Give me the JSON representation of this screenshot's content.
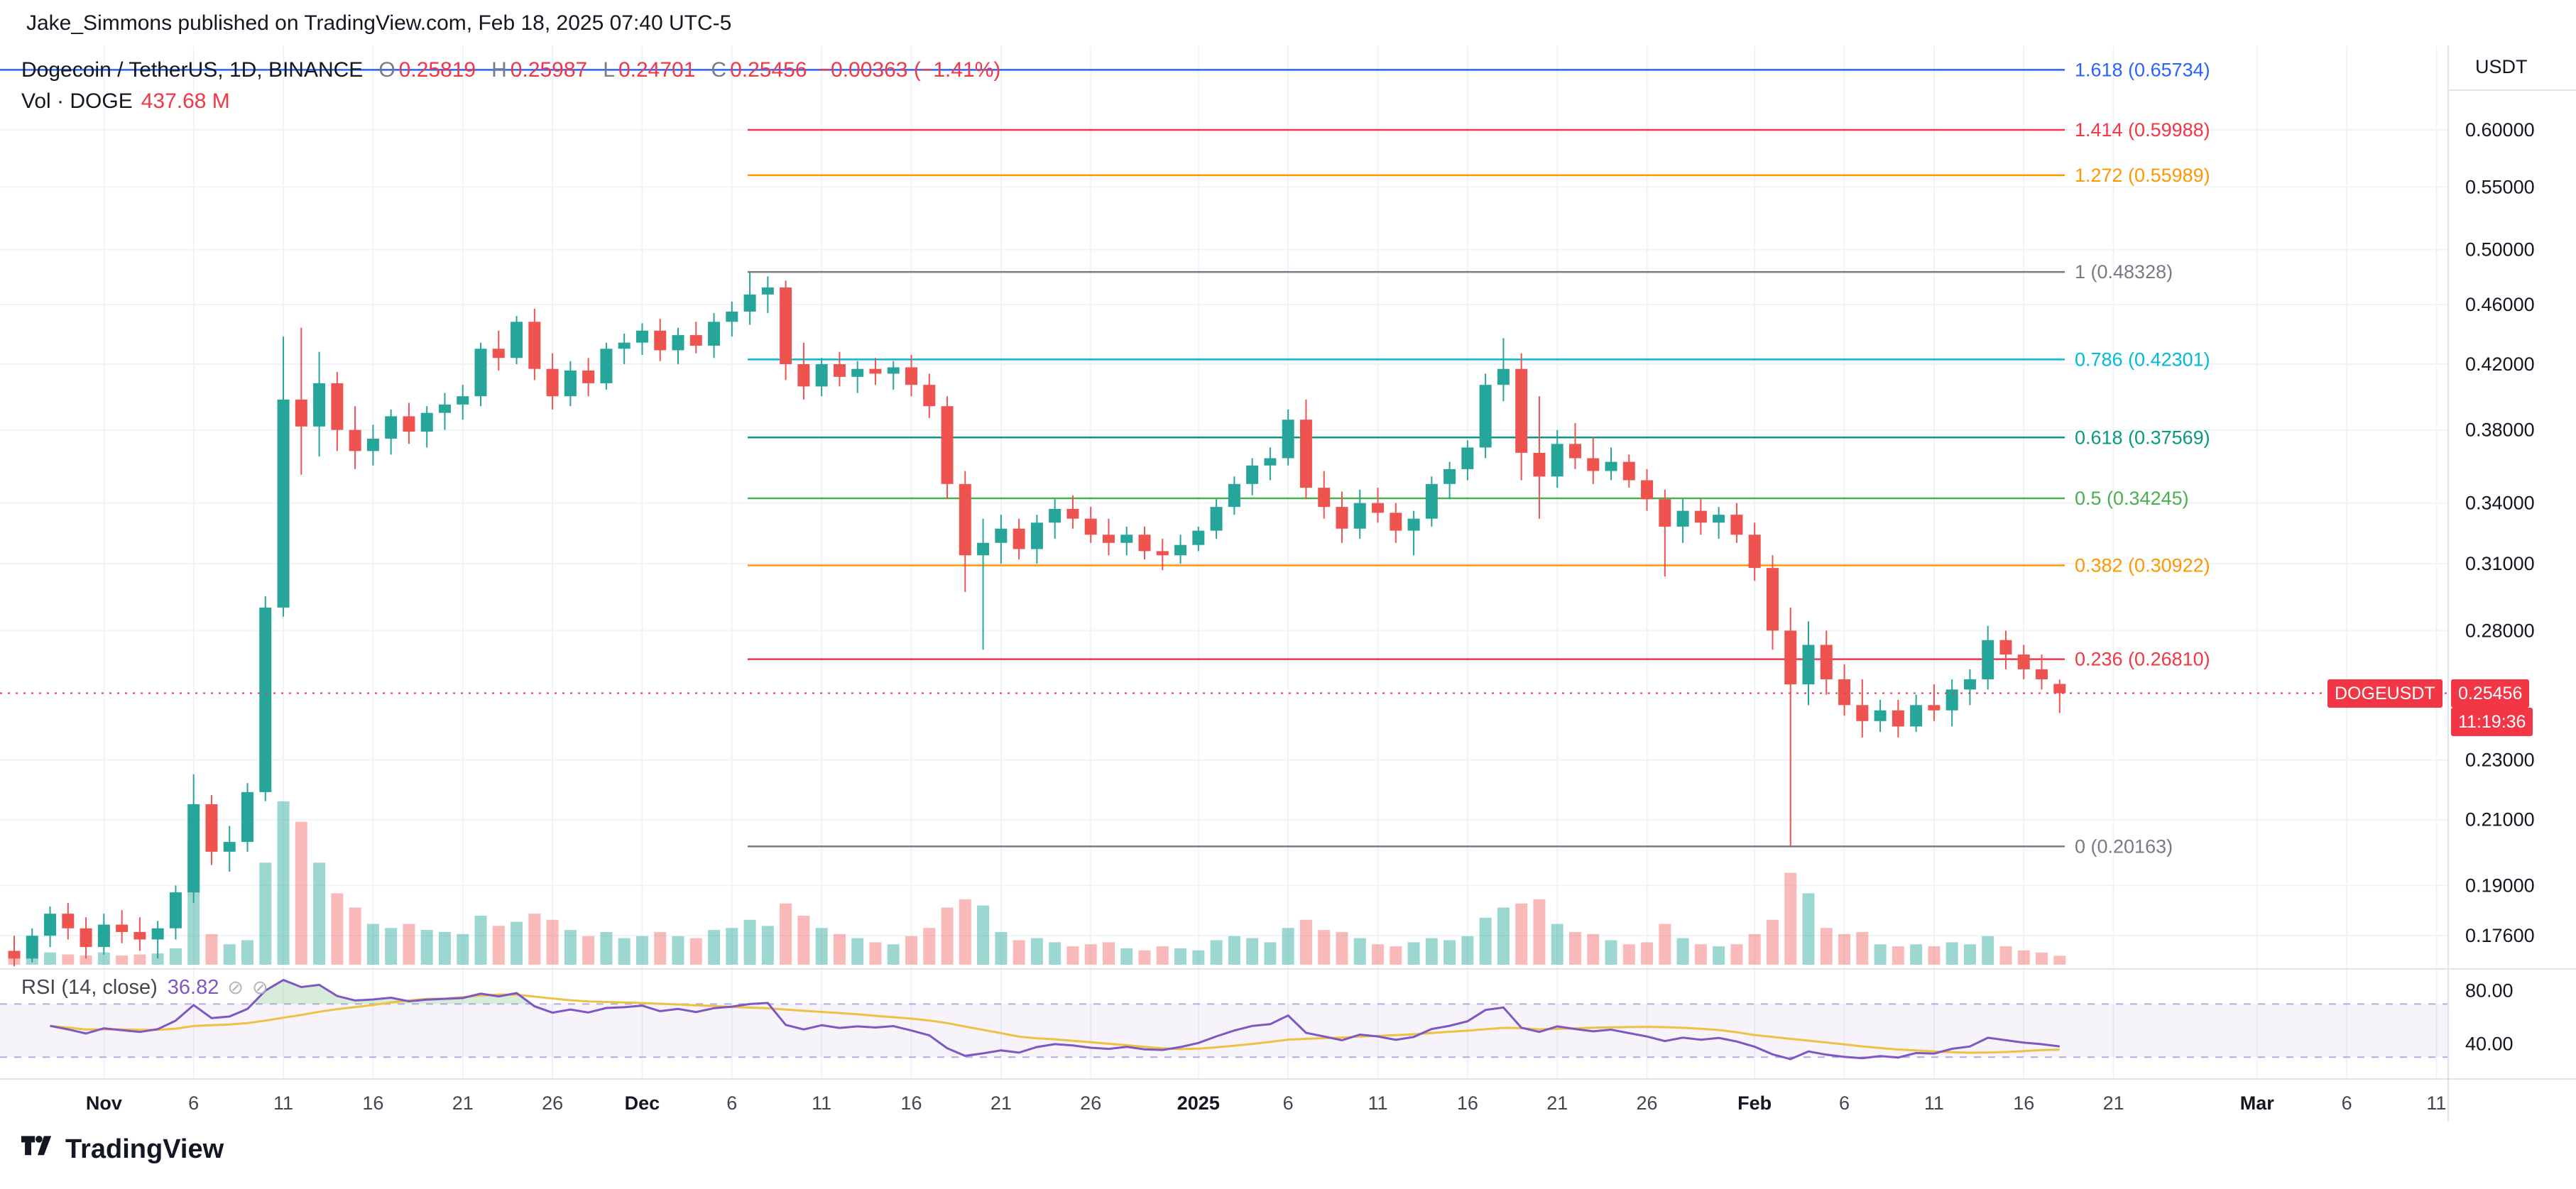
{
  "header": {
    "byline": "Jake_Simmons published on TradingView.com, Feb 18, 2025 07:40 UTC-5"
  },
  "legend": {
    "symbol": "Dogecoin / TetherUS, 1D, BINANCE",
    "ohlc": {
      "o_label": "O",
      "o": "0.25819",
      "h_label": "H",
      "h": "0.25987",
      "l_label": "L",
      "l": "0.24701",
      "c_label": "C",
      "c": "0.25456",
      "change": "−0.00363 (−1.41%)"
    },
    "volume_label": "Vol · DOGE",
    "volume_value": "437.68 M"
  },
  "rsi_legend": {
    "label": "RSI (14, close)",
    "value": "36.82"
  },
  "price_axis": {
    "currency": "USDT",
    "symbol_badge": "DOGEUSDT",
    "last_price_label": "0.25456",
    "countdown": "11:19:36"
  },
  "footer": {
    "brand": "TradingView"
  },
  "colors": {
    "up": "#26a69a",
    "down": "#ef5350",
    "vol_up": "rgba(38,166,154,0.45)",
    "vol_down": "rgba(239,83,80,0.40)",
    "accent_red": "#f23645",
    "rsi": "#7e57c2",
    "rsi_ma": "#edc240",
    "grid": "#f0f3fa",
    "separator": "#e0e3eb",
    "text": "#131722",
    "muted": "#787b86"
  },
  "chart_data": {
    "type": "candlestick",
    "symbol": "DOGEUSDT",
    "exchange": "BINANCE",
    "interval": "1D",
    "scale": "log",
    "last_price": 0.25456,
    "last_bar": {
      "open": 0.25819,
      "high": 0.25987,
      "low": 0.24701,
      "close": 0.25456,
      "change": -0.00363,
      "change_pct": -1.41,
      "volume_m": 437.68
    },
    "volume_unit": "M DOGE",
    "candles": [
      [
        "2024-10-27",
        0.172,
        0.176,
        0.168,
        0.17,
        400
      ],
      [
        "2024-10-28",
        0.17,
        0.178,
        0.169,
        0.176,
        500
      ],
      [
        "2024-10-29",
        0.176,
        0.184,
        0.173,
        0.182,
        600
      ],
      [
        "2024-10-30",
        0.182,
        0.185,
        0.175,
        0.178,
        500
      ],
      [
        "2024-10-31",
        0.178,
        0.181,
        0.17,
        0.173,
        450
      ],
      [
        "2024-11-01",
        0.173,
        0.182,
        0.171,
        0.179,
        600
      ],
      [
        "2024-11-02",
        0.179,
        0.183,
        0.174,
        0.177,
        450
      ],
      [
        "2024-11-03",
        0.177,
        0.181,
        0.172,
        0.175,
        500
      ],
      [
        "2024-11-04",
        0.175,
        0.18,
        0.17,
        0.178,
        550
      ],
      [
        "2024-11-05",
        0.178,
        0.19,
        0.175,
        0.188,
        800
      ],
      [
        "2024-11-06",
        0.188,
        0.225,
        0.185,
        0.215,
        6000
      ],
      [
        "2024-11-07",
        0.215,
        0.218,
        0.196,
        0.2,
        1500
      ],
      [
        "2024-11-08",
        0.2,
        0.208,
        0.194,
        0.203,
        1000
      ],
      [
        "2024-11-09",
        0.203,
        0.222,
        0.2,
        0.219,
        1200
      ],
      [
        "2024-11-10",
        0.219,
        0.295,
        0.216,
        0.29,
        5000
      ],
      [
        "2024-11-11",
        0.29,
        0.438,
        0.286,
        0.398,
        8000
      ],
      [
        "2024-11-12",
        0.398,
        0.444,
        0.355,
        0.382,
        7000
      ],
      [
        "2024-11-13",
        0.382,
        0.428,
        0.365,
        0.408,
        5000
      ],
      [
        "2024-11-14",
        0.408,
        0.415,
        0.368,
        0.38,
        3500
      ],
      [
        "2024-11-15",
        0.38,
        0.394,
        0.358,
        0.368,
        2800
      ],
      [
        "2024-11-16",
        0.368,
        0.383,
        0.36,
        0.375,
        2000
      ],
      [
        "2024-11-17",
        0.375,
        0.392,
        0.366,
        0.388,
        1800
      ],
      [
        "2024-11-18",
        0.388,
        0.396,
        0.372,
        0.379,
        2000
      ],
      [
        "2024-11-19",
        0.379,
        0.394,
        0.37,
        0.39,
        1700
      ],
      [
        "2024-11-20",
        0.39,
        0.402,
        0.38,
        0.395,
        1600
      ],
      [
        "2024-11-21",
        0.395,
        0.407,
        0.386,
        0.4,
        1500
      ],
      [
        "2024-11-22",
        0.4,
        0.434,
        0.394,
        0.43,
        2400
      ],
      [
        "2024-11-23",
        0.43,
        0.442,
        0.416,
        0.424,
        1900
      ],
      [
        "2024-11-24",
        0.424,
        0.452,
        0.42,
        0.448,
        2100
      ],
      [
        "2024-11-25",
        0.448,
        0.457,
        0.41,
        0.417,
        2500
      ],
      [
        "2024-11-26",
        0.417,
        0.427,
        0.392,
        0.4,
        2200
      ],
      [
        "2024-11-27",
        0.4,
        0.422,
        0.394,
        0.416,
        1700
      ],
      [
        "2024-11-28",
        0.416,
        0.424,
        0.4,
        0.408,
        1400
      ],
      [
        "2024-11-29",
        0.408,
        0.434,
        0.404,
        0.43,
        1600
      ],
      [
        "2024-11-30",
        0.43,
        0.44,
        0.42,
        0.434,
        1300
      ],
      [
        "2024-12-01",
        0.434,
        0.447,
        0.426,
        0.442,
        1400
      ],
      [
        "2024-12-02",
        0.442,
        0.45,
        0.422,
        0.429,
        1600
      ],
      [
        "2024-12-03",
        0.429,
        0.444,
        0.42,
        0.439,
        1400
      ],
      [
        "2024-12-04",
        0.439,
        0.448,
        0.427,
        0.432,
        1300
      ],
      [
        "2024-12-05",
        0.432,
        0.454,
        0.424,
        0.448,
        1700
      ],
      [
        "2024-12-06",
        0.448,
        0.462,
        0.438,
        0.455,
        1800
      ],
      [
        "2024-12-07",
        0.455,
        0.483,
        0.446,
        0.467,
        2200
      ],
      [
        "2024-12-08",
        0.467,
        0.48,
        0.454,
        0.472,
        1900
      ],
      [
        "2024-12-09",
        0.472,
        0.477,
        0.41,
        0.42,
        3000
      ],
      [
        "2024-12-10",
        0.42,
        0.434,
        0.398,
        0.406,
        2400
      ],
      [
        "2024-12-11",
        0.406,
        0.424,
        0.4,
        0.42,
        1800
      ],
      [
        "2024-12-12",
        0.42,
        0.428,
        0.406,
        0.412,
        1500
      ],
      [
        "2024-12-13",
        0.412,
        0.422,
        0.402,
        0.417,
        1300
      ],
      [
        "2024-12-14",
        0.417,
        0.424,
        0.407,
        0.414,
        1100
      ],
      [
        "2024-12-15",
        0.414,
        0.422,
        0.404,
        0.418,
        1000
      ],
      [
        "2024-12-16",
        0.418,
        0.426,
        0.4,
        0.407,
        1400
      ],
      [
        "2024-12-17",
        0.407,
        0.414,
        0.387,
        0.394,
        1800
      ],
      [
        "2024-12-18",
        0.394,
        0.4,
        0.342,
        0.35,
        2800
      ],
      [
        "2024-12-19",
        0.35,
        0.357,
        0.297,
        0.314,
        3200
      ],
      [
        "2024-12-20",
        0.314,
        0.332,
        0.272,
        0.32,
        2900
      ],
      [
        "2024-12-21",
        0.32,
        0.334,
        0.31,
        0.327,
        1600
      ],
      [
        "2024-12-22",
        0.327,
        0.332,
        0.312,
        0.317,
        1200
      ],
      [
        "2024-12-23",
        0.317,
        0.334,
        0.31,
        0.33,
        1300
      ],
      [
        "2024-12-24",
        0.33,
        0.342,
        0.322,
        0.337,
        1100
      ],
      [
        "2024-12-25",
        0.337,
        0.344,
        0.327,
        0.332,
        900
      ],
      [
        "2024-12-26",
        0.332,
        0.338,
        0.32,
        0.324,
        1000
      ],
      [
        "2024-12-27",
        0.324,
        0.332,
        0.314,
        0.32,
        1100
      ],
      [
        "2024-12-28",
        0.32,
        0.328,
        0.314,
        0.324,
        800
      ],
      [
        "2024-12-29",
        0.324,
        0.328,
        0.312,
        0.316,
        700
      ],
      [
        "2024-12-30",
        0.316,
        0.322,
        0.307,
        0.314,
        900
      ],
      [
        "2024-12-31",
        0.314,
        0.324,
        0.31,
        0.319,
        800
      ],
      [
        "2025-01-01",
        0.319,
        0.328,
        0.316,
        0.326,
        700
      ],
      [
        "2025-01-02",
        0.326,
        0.342,
        0.322,
        0.338,
        1200
      ],
      [
        "2025-01-03",
        0.338,
        0.354,
        0.334,
        0.35,
        1400
      ],
      [
        "2025-01-04",
        0.35,
        0.364,
        0.344,
        0.36,
        1300
      ],
      [
        "2025-01-05",
        0.36,
        0.37,
        0.352,
        0.364,
        1100
      ],
      [
        "2025-01-06",
        0.364,
        0.392,
        0.36,
        0.386,
        1800
      ],
      [
        "2025-01-07",
        0.386,
        0.398,
        0.342,
        0.348,
        2200
      ],
      [
        "2025-01-08",
        0.348,
        0.357,
        0.332,
        0.338,
        1700
      ],
      [
        "2025-01-09",
        0.338,
        0.346,
        0.32,
        0.327,
        1600
      ],
      [
        "2025-01-10",
        0.327,
        0.347,
        0.322,
        0.34,
        1300
      ],
      [
        "2025-01-11",
        0.34,
        0.348,
        0.33,
        0.335,
        1000
      ],
      [
        "2025-01-12",
        0.335,
        0.34,
        0.32,
        0.326,
        900
      ],
      [
        "2025-01-13",
        0.326,
        0.336,
        0.314,
        0.332,
        1100
      ],
      [
        "2025-01-14",
        0.332,
        0.354,
        0.328,
        0.35,
        1300
      ],
      [
        "2025-01-15",
        0.35,
        0.362,
        0.342,
        0.358,
        1200
      ],
      [
        "2025-01-16",
        0.358,
        0.374,
        0.352,
        0.37,
        1400
      ],
      [
        "2025-01-17",
        0.37,
        0.414,
        0.364,
        0.407,
        2300
      ],
      [
        "2025-01-18",
        0.407,
        0.437,
        0.397,
        0.417,
        2800
      ],
      [
        "2025-01-19",
        0.417,
        0.427,
        0.352,
        0.367,
        3000
      ],
      [
        "2025-01-20",
        0.367,
        0.4,
        0.332,
        0.354,
        3200
      ],
      [
        "2025-01-21",
        0.354,
        0.38,
        0.348,
        0.372,
        2000
      ],
      [
        "2025-01-22",
        0.372,
        0.384,
        0.358,
        0.364,
        1600
      ],
      [
        "2025-01-23",
        0.364,
        0.376,
        0.35,
        0.357,
        1500
      ],
      [
        "2025-01-24",
        0.357,
        0.37,
        0.352,
        0.362,
        1200
      ],
      [
        "2025-01-25",
        0.362,
        0.366,
        0.348,
        0.352,
        1000
      ],
      [
        "2025-01-26",
        0.352,
        0.358,
        0.336,
        0.342,
        1100
      ],
      [
        "2025-01-27",
        0.342,
        0.347,
        0.304,
        0.328,
        2000
      ],
      [
        "2025-01-28",
        0.328,
        0.342,
        0.32,
        0.336,
        1300
      ],
      [
        "2025-01-29",
        0.336,
        0.342,
        0.324,
        0.33,
        1000
      ],
      [
        "2025-01-30",
        0.33,
        0.338,
        0.322,
        0.334,
        900
      ],
      [
        "2025-01-31",
        0.334,
        0.34,
        0.32,
        0.324,
        1000
      ],
      [
        "2025-02-01",
        0.324,
        0.33,
        0.302,
        0.308,
        1500
      ],
      [
        "2025-02-02",
        0.308,
        0.314,
        0.272,
        0.28,
        2200
      ],
      [
        "2025-02-03",
        0.28,
        0.29,
        0.2016,
        0.258,
        4500
      ],
      [
        "2025-02-04",
        0.258,
        0.284,
        0.25,
        0.274,
        3500
      ],
      [
        "2025-02-05",
        0.274,
        0.28,
        0.254,
        0.26,
        1800
      ],
      [
        "2025-02-06",
        0.26,
        0.266,
        0.246,
        0.25,
        1500
      ],
      [
        "2025-02-07",
        0.25,
        0.26,
        0.238,
        0.244,
        1600
      ],
      [
        "2025-02-08",
        0.244,
        0.252,
        0.24,
        0.248,
        1000
      ],
      [
        "2025-02-09",
        0.248,
        0.252,
        0.238,
        0.242,
        900
      ],
      [
        "2025-02-10",
        0.242,
        0.254,
        0.24,
        0.25,
        1000
      ],
      [
        "2025-02-11",
        0.25,
        0.258,
        0.244,
        0.248,
        900
      ],
      [
        "2025-02-12",
        0.248,
        0.26,
        0.242,
        0.256,
        1100
      ],
      [
        "2025-02-13",
        0.256,
        0.264,
        0.25,
        0.26,
        1000
      ],
      [
        "2025-02-14",
        0.26,
        0.282,
        0.256,
        0.276,
        1400
      ],
      [
        "2025-02-15",
        0.276,
        0.28,
        0.264,
        0.27,
        900
      ],
      [
        "2025-02-16",
        0.27,
        0.274,
        0.26,
        0.264,
        700
      ],
      [
        "2025-02-17",
        0.264,
        0.27,
        0.256,
        0.26,
        600
      ],
      [
        "2025-02-18",
        0.25819,
        0.25987,
        0.24701,
        0.25456,
        437.68
      ]
    ],
    "fib_levels": [
      {
        "level": "1.618",
        "label": "1.618 (0.65734)",
        "price": 0.65734,
        "color": "#2962ff",
        "extend_left": true
      },
      {
        "level": "1.414",
        "label": "1.414 (0.59988)",
        "price": 0.59988,
        "color": "#f23645"
      },
      {
        "level": "1.272",
        "label": "1.272 (0.55989)",
        "price": 0.55989,
        "color": "#ff9800"
      },
      {
        "level": "1",
        "label": "1 (0.48328)",
        "price": 0.48328,
        "color": "#787b86"
      },
      {
        "level": "0.786",
        "label": "0.786 (0.42301)",
        "price": 0.42301,
        "color": "#00bcd4"
      },
      {
        "level": "0.618",
        "label": "0.618 (0.37569)",
        "price": 0.37569,
        "color": "#089981"
      },
      {
        "level": "0.5",
        "label": "0.5 (0.34245)",
        "price": 0.34245,
        "color": "#4caf50"
      },
      {
        "level": "0.382",
        "label": "0.382 (0.30922)",
        "price": 0.30922,
        "color": "#ff9800"
      },
      {
        "level": "0.236",
        "label": "0.236 (0.26810)",
        "price": 0.2681,
        "color": "#f23645"
      },
      {
        "level": "0",
        "label": "0 (0.20163)",
        "price": 0.20163,
        "color": "#787b86"
      }
    ],
    "price_axis_ticks": [
      {
        "label": "0.60000",
        "value": 0.6
      },
      {
        "label": "0.55000",
        "value": 0.55
      },
      {
        "label": "0.50000",
        "value": 0.5
      },
      {
        "label": "0.46000",
        "value": 0.46
      },
      {
        "label": "0.42000",
        "value": 0.42
      },
      {
        "label": "0.38000",
        "value": 0.38
      },
      {
        "label": "0.34000",
        "value": 0.34
      },
      {
        "label": "0.31000",
        "value": 0.31
      },
      {
        "label": "0.28000",
        "value": 0.28
      },
      {
        "label": "0.23000",
        "value": 0.23
      },
      {
        "label": "0.21000",
        "value": 0.21
      },
      {
        "label": "0.19000",
        "value": 0.19
      },
      {
        "label": "0.17600",
        "value": 0.176
      }
    ],
    "time_axis_ticks": [
      {
        "label": "Nov",
        "d": 5,
        "major": true
      },
      {
        "label": "6",
        "d": 10
      },
      {
        "label": "11",
        "d": 15
      },
      {
        "label": "16",
        "d": 20
      },
      {
        "label": "21",
        "d": 25
      },
      {
        "label": "26",
        "d": 30
      },
      {
        "label": "Dec",
        "d": 35,
        "major": true
      },
      {
        "label": "6",
        "d": 40
      },
      {
        "label": "11",
        "d": 45
      },
      {
        "label": "16",
        "d": 50
      },
      {
        "label": "21",
        "d": 55
      },
      {
        "label": "26",
        "d": 60
      },
      {
        "label": "2025",
        "d": 66,
        "major": true
      },
      {
        "label": "6",
        "d": 71
      },
      {
        "label": "11",
        "d": 76
      },
      {
        "label": "16",
        "d": 81
      },
      {
        "label": "21",
        "d": 86
      },
      {
        "label": "26",
        "d": 91
      },
      {
        "label": "Feb",
        "d": 97,
        "major": true
      },
      {
        "label": "6",
        "d": 102
      },
      {
        "label": "11",
        "d": 107
      },
      {
        "label": "16",
        "d": 112
      },
      {
        "label": "21",
        "d": 117
      },
      {
        "label": "Mar",
        "d": 125,
        "major": true
      },
      {
        "label": "6",
        "d": 130
      },
      {
        "label": "11",
        "d": 135
      }
    ],
    "indicators": {
      "rsi": {
        "name": "RSI",
        "period": 14,
        "source": "close",
        "last_value": 36.82,
        "overbought": 70,
        "oversold": 30,
        "axis_labels": [
          {
            "label": "80.00",
            "value": 80
          },
          {
            "label": "40.00",
            "value": 40
          }
        ]
      }
    }
  }
}
